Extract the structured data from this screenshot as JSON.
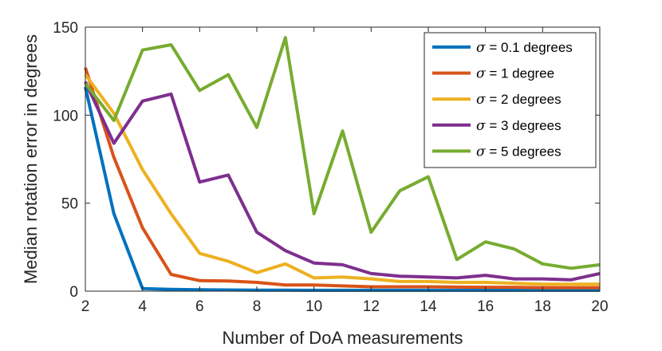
{
  "chart_data": {
    "type": "line",
    "title": "",
    "xlabel": "Number of DoA measurements",
    "ylabel": "Median rotation error in degrees",
    "xlim": [
      2,
      20
    ],
    "ylim": [
      0,
      150
    ],
    "xticks": [
      2,
      4,
      6,
      8,
      10,
      12,
      14,
      16,
      18,
      20
    ],
    "yticks": [
      0,
      50,
      100,
      150
    ],
    "grid": false,
    "legend_position": "top-right",
    "x": [
      2,
      3,
      4,
      5,
      6,
      7,
      8,
      9,
      10,
      11,
      12,
      13,
      14,
      15,
      16,
      17,
      18,
      19,
      20
    ],
    "series": [
      {
        "name": "σ = 0.1 degrees",
        "symbol": "σ",
        "label_rest": " = 0.1 degrees",
        "color": "#0072BD",
        "values": [
          116,
          44,
          1.5,
          1,
          0.8,
          0.7,
          0.6,
          0.6,
          0.5,
          0.5,
          0.5,
          0.5,
          0.5,
          0.5,
          0.5,
          0.5,
          0.5,
          0.5,
          0.5
        ]
      },
      {
        "name": "σ = 1 degree",
        "symbol": "σ",
        "label_rest": " = 1 degree",
        "color": "#D95319",
        "values": [
          127,
          76,
          36,
          9.5,
          6,
          5.8,
          5,
          3.5,
          3.5,
          3,
          2.5,
          2.5,
          2.5,
          2.3,
          2.2,
          2.2,
          2,
          2,
          2
        ]
      },
      {
        "name": "σ = 2 degrees",
        "symbol": "σ",
        "label_rest": " = 2 degrees",
        "color": "#EDB120",
        "values": [
          123,
          101,
          69,
          44,
          21.5,
          17,
          10.5,
          15.5,
          7.5,
          8,
          7,
          5.5,
          5.5,
          5,
          5,
          4.5,
          4,
          4,
          4
        ]
      },
      {
        "name": "σ = 3 degrees",
        "symbol": "σ",
        "label_rest": " = 3 degrees",
        "color": "#7E2F8E",
        "values": [
          119,
          84,
          108,
          112,
          62,
          66,
          33.5,
          23,
          16,
          15,
          10,
          8.5,
          8,
          7.5,
          9,
          7,
          7,
          6.5,
          10
        ]
      },
      {
        "name": "σ = 5 degrees",
        "symbol": "σ",
        "label_rest": " = 5 degrees",
        "color": "#77AC30",
        "values": [
          118,
          97,
          137,
          140,
          114,
          123,
          93,
          144,
          44,
          91,
          33.5,
          57,
          65,
          18,
          28,
          24,
          15.5,
          13,
          15
        ]
      }
    ]
  }
}
